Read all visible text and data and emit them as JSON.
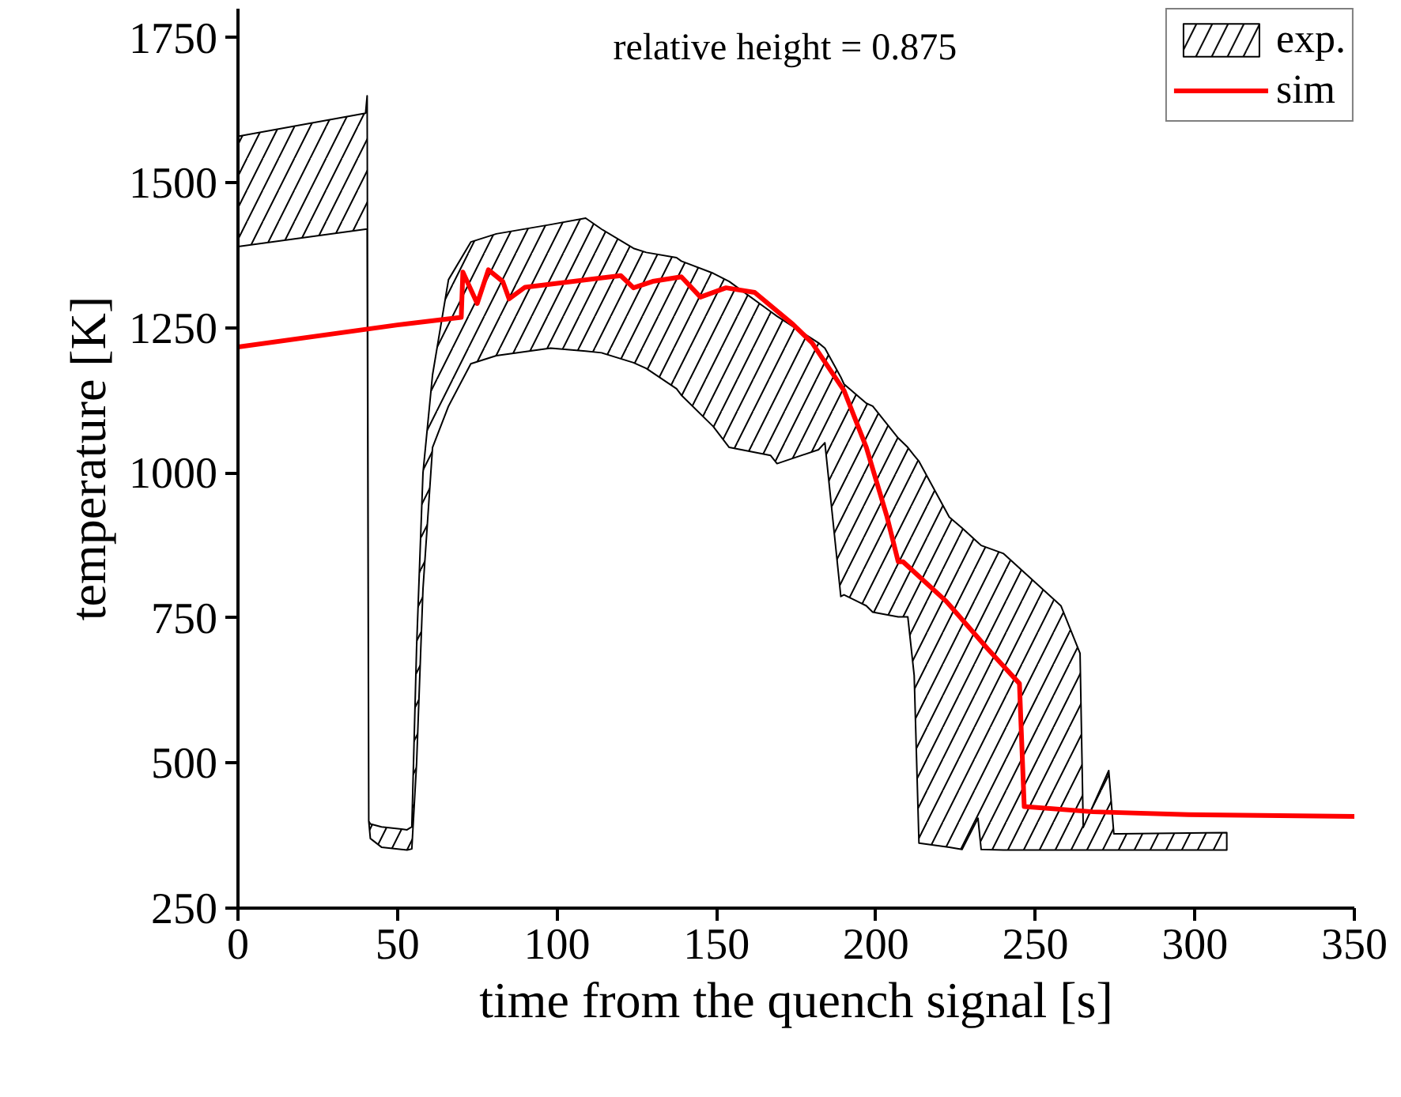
{
  "chart_data": {
    "type": "line",
    "xlabel": "time from the quench signal [s]",
    "ylabel": "temperature [K]",
    "annotations": [
      "relative height = 0.875"
    ],
    "xlim": [
      0,
      350
    ],
    "xticks": [
      0,
      50,
      100,
      150,
      200,
      250,
      300,
      350
    ],
    "ylim": [
      250,
      1800
    ],
    "yticks": [
      250,
      500,
      750,
      1000,
      1250,
      1500,
      1750
    ],
    "grid": false,
    "legend": "top right",
    "marker": "none",
    "line_style": "solid",
    "series": [
      {
        "name": "exp.",
        "type": "area",
        "color": "#000000",
        "x": [
          0,
          40,
          40.5,
          41,
          41.5,
          45,
          53,
          54.5,
          56,
          58,
          61,
          66,
          73,
          81,
          98,
          109,
          114,
          124,
          128,
          137.5,
          139,
          149,
          154,
          167,
          169,
          182,
          184,
          189,
          190,
          197,
          199,
          207,
          210,
          212,
          213.5,
          223,
          227,
          232,
          233,
          240,
          258,
          264,
          265,
          273,
          274.6,
          276.5,
          310
        ],
        "values": [
          null,
          null,
          null,
          null,
          null,
          null,
          null,
          null,
          null,
          null,
          null,
          null,
          null,
          null,
          null,
          null,
          null,
          null,
          null,
          null,
          null,
          null,
          null,
          null,
          null,
          null,
          null,
          null,
          null,
          null,
          null,
          null,
          null,
          null,
          null,
          null,
          null,
          null,
          null,
          null,
          null,
          null,
          null,
          null,
          null,
          null,
          null
        ],
        "upper": [
          1580,
          1620,
          1650,
          400,
          395,
          390,
          385,
          390,
          700,
          1000,
          1169,
          1333,
          1398,
          1412,
          1428,
          1439,
          1420,
          1387,
          1380,
          1371,
          1365,
          1344,
          1330,
          1278,
          1270,
          1224,
          1215,
          1165,
          1153,
          1120,
          1115,
          1060,
          1044,
          1030,
          1020,
          924,
          905,
          880,
          875,
          861,
          771,
          689,
          389,
          487,
          378,
          378,
          380
        ],
        "lower": [
          1390,
          1420,
          1420,
          400,
          370,
          355,
          350,
          352,
          500,
          800,
          1044,
          1115,
          1188,
          1202,
          1215,
          1210,
          1207,
          1190,
          1180,
          1145,
          1134,
          1080,
          1044,
          1030,
          1016,
          1040,
          1052,
          787,
          790,
          771,
          760,
          752,
          752,
          651,
          362,
          355,
          351,
          405,
          351,
          350,
          350,
          350,
          350,
          350,
          350,
          350,
          350
        ]
      },
      {
        "name": "sim",
        "color": "#ff0000",
        "x": [
          0,
          50,
          70,
          70.5,
          75,
          78.5,
          83,
          85,
          90,
          120,
          124,
          130,
          139,
          145,
          153,
          162,
          174,
          180,
          190,
          197,
          203.5,
          207,
          208.5,
          222,
          235,
          245,
          246.5,
          268,
          298,
          350
        ],
        "values": [
          1217,
          1255,
          1268,
          1346,
          1292,
          1350,
          1330,
          1300,
          1320,
          1340,
          1319,
          1330,
          1338,
          1303,
          1319,
          1311,
          1256,
          1224,
          1142,
          1044,
          924,
          847,
          847,
          779,
          697,
          637,
          425,
          416,
          411,
          408
        ]
      }
    ]
  }
}
